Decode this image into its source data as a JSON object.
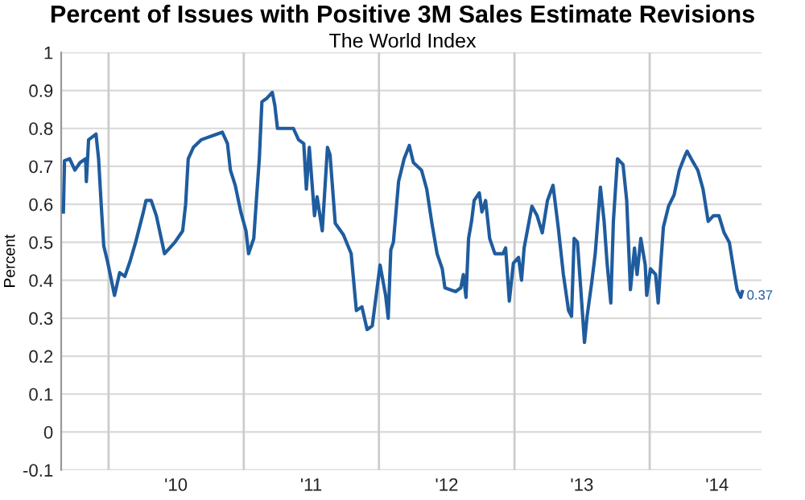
{
  "chart_data": {
    "type": "line",
    "title": "Percent of Issues with Positive 3M Sales Estimate Revisions",
    "subtitle": "The World Index",
    "ylabel": "Percent",
    "x": [
      "2009-09-01",
      "2009-09-04",
      "2009-09-18",
      "2009-10-02",
      "2009-10-16",
      "2009-10-31",
      "2009-11-02",
      "2009-11-08",
      "2009-11-28",
      "2009-12-05",
      "2009-12-12",
      "2009-12-19",
      "2009-12-29",
      "2010-01-17",
      "2010-01-31",
      "2010-02-14",
      "2010-02-28",
      "2010-03-15",
      "2010-04-05",
      "2010-04-12",
      "2010-04-26",
      "2010-05-10",
      "2010-06-01",
      "2010-06-29",
      "2010-07-20",
      "2010-07-28",
      "2010-08-04",
      "2010-08-18",
      "2010-09-08",
      "2010-10-06",
      "2010-11-04",
      "2010-11-18",
      "2010-11-26",
      "2010-12-09",
      "2010-12-24",
      "2011-01-07",
      "2011-01-14",
      "2011-01-28",
      "2011-02-04",
      "2011-02-12",
      "2011-02-19",
      "2011-03-05",
      "2011-03-19",
      "2011-03-26",
      "2011-04-02",
      "2011-04-23",
      "2011-05-15",
      "2011-05-29",
      "2011-06-12",
      "2011-06-19",
      "2011-06-27",
      "2011-07-11",
      "2011-07-18",
      "2011-08-01",
      "2011-08-15",
      "2011-08-22",
      "2011-09-05",
      "2011-09-27",
      "2011-10-18",
      "2011-11-01",
      "2011-11-16",
      "2011-11-30",
      "2011-12-14",
      "2012-01-04",
      "2012-01-19",
      "2012-01-26",
      "2012-02-02",
      "2012-02-09",
      "2012-02-23",
      "2012-03-09",
      "2012-03-23",
      "2012-04-03",
      "2012-04-25",
      "2012-05-09",
      "2012-05-23",
      "2012-06-06",
      "2012-06-20",
      "2012-06-27",
      "2012-07-12",
      "2012-07-26",
      "2012-08-09",
      "2012-08-16",
      "2012-08-23",
      "2012-08-30",
      "2012-09-07",
      "2012-09-14",
      "2012-09-28",
      "2012-10-05",
      "2012-10-15",
      "2012-10-26",
      "2012-11-09",
      "2012-12-01",
      "2012-12-08",
      "2012-12-18",
      "2012-12-29",
      "2013-01-12",
      "2013-01-20",
      "2013-01-27",
      "2013-02-17",
      "2013-03-03",
      "2013-03-17",
      "2013-03-31",
      "2013-04-15",
      "2013-04-29",
      "2013-05-13",
      "2013-05-27",
      "2013-06-04",
      "2013-06-11",
      "2013-06-20",
      "2013-06-28",
      "2013-07-09",
      "2013-07-16",
      "2013-07-28",
      "2013-08-07",
      "2013-08-21",
      "2013-08-31",
      "2013-09-08",
      "2013-09-18",
      "2013-09-25",
      "2013-10-06",
      "2013-10-21",
      "2013-10-31",
      "2013-11-10",
      "2013-11-21",
      "2013-11-28",
      "2013-12-08",
      "2013-12-20",
      "2013-12-24",
      "2014-01-03",
      "2014-01-17",
      "2014-01-24",
      "2014-01-31",
      "2014-02-07",
      "2014-02-21",
      "2014-03-08",
      "2014-03-22",
      "2014-04-05",
      "2014-04-12",
      "2014-04-26",
      "2014-05-11",
      "2014-05-25",
      "2014-06-08",
      "2014-06-22",
      "2014-07-07",
      "2014-07-21",
      "2014-08-04",
      "2014-08-18",
      "2014-08-25",
      "2014-09-04",
      "2014-09-08"
    ],
    "series": [
      {
        "color": "#1f5c9e",
        "values": [
          0.58,
          0.715,
          0.72,
          0.69,
          0.71,
          0.72,
          0.66,
          0.77,
          0.785,
          0.72,
          0.6,
          0.49,
          0.45,
          0.36,
          0.42,
          0.41,
          0.45,
          0.5,
          0.58,
          0.61,
          0.61,
          0.57,
          0.47,
          0.5,
          0.53,
          0.6,
          0.72,
          0.75,
          0.77,
          0.78,
          0.79,
          0.76,
          0.69,
          0.65,
          0.58,
          0.53,
          0.47,
          0.51,
          0.61,
          0.72,
          0.87,
          0.88,
          0.895,
          0.86,
          0.8,
          0.8,
          0.8,
          0.77,
          0.76,
          0.64,
          0.75,
          0.57,
          0.62,
          0.53,
          0.75,
          0.73,
          0.55,
          0.52,
          0.47,
          0.32,
          0.33,
          0.27,
          0.28,
          0.44,
          0.36,
          0.3,
          0.48,
          0.5,
          0.66,
          0.72,
          0.755,
          0.71,
          0.69,
          0.64,
          0.55,
          0.47,
          0.43,
          0.38,
          0.375,
          0.37,
          0.38,
          0.415,
          0.355,
          0.51,
          0.555,
          0.61,
          0.63,
          0.58,
          0.61,
          0.51,
          0.47,
          0.47,
          0.485,
          0.345,
          0.445,
          0.46,
          0.4,
          0.485,
          0.595,
          0.57,
          0.525,
          0.61,
          0.65,
          0.54,
          0.415,
          0.32,
          0.305,
          0.51,
          0.5,
          0.39,
          0.236,
          0.305,
          0.39,
          0.47,
          0.645,
          0.555,
          0.445,
          0.34,
          0.555,
          0.72,
          0.705,
          0.61,
          0.375,
          0.485,
          0.415,
          0.51,
          0.44,
          0.36,
          0.43,
          0.415,
          0.34,
          0.445,
          0.54,
          0.595,
          0.625,
          0.69,
          0.725,
          0.74,
          0.715,
          0.69,
          0.64,
          0.555,
          0.57,
          0.57,
          0.525,
          0.5,
          0.415,
          0.375,
          0.355,
          0.37
        ]
      }
    ],
    "annotations": [
      {
        "text": "0.37",
        "x": "2014-09-08",
        "y": 0.37
      }
    ],
    "xlim": [
      "2009-08-26",
      "2014-10-30"
    ],
    "xticks": [
      {
        "value": "2010-07-02",
        "label": "'10"
      },
      {
        "value": "2011-07-02",
        "label": "'11"
      },
      {
        "value": "2012-07-02",
        "label": "'12"
      },
      {
        "value": "2013-07-02",
        "label": "'13"
      },
      {
        "value": "2014-07-02",
        "label": "'14"
      }
    ],
    "ylim": [
      -0.1,
      1
    ],
    "yticks": [
      -0.1,
      0,
      0.1,
      0.2,
      0.3,
      0.4,
      0.5,
      0.6,
      0.7,
      0.8,
      0.9,
      1
    ],
    "ref_lines": [
      {
        "axis": "x",
        "value": "2010-01-01",
        "color": "#cccccc"
      },
      {
        "axis": "x",
        "value": "2011-01-01",
        "color": "#cccccc"
      },
      {
        "axis": "x",
        "value": "2012-01-01",
        "color": "#cccccc"
      },
      {
        "axis": "x",
        "value": "2013-01-01",
        "color": "#cccccc"
      },
      {
        "axis": "x",
        "value": "2014-01-01",
        "color": "#cccccc"
      }
    ],
    "grid": "y",
    "legend": false,
    "marker": "none",
    "line_style": "solid"
  }
}
